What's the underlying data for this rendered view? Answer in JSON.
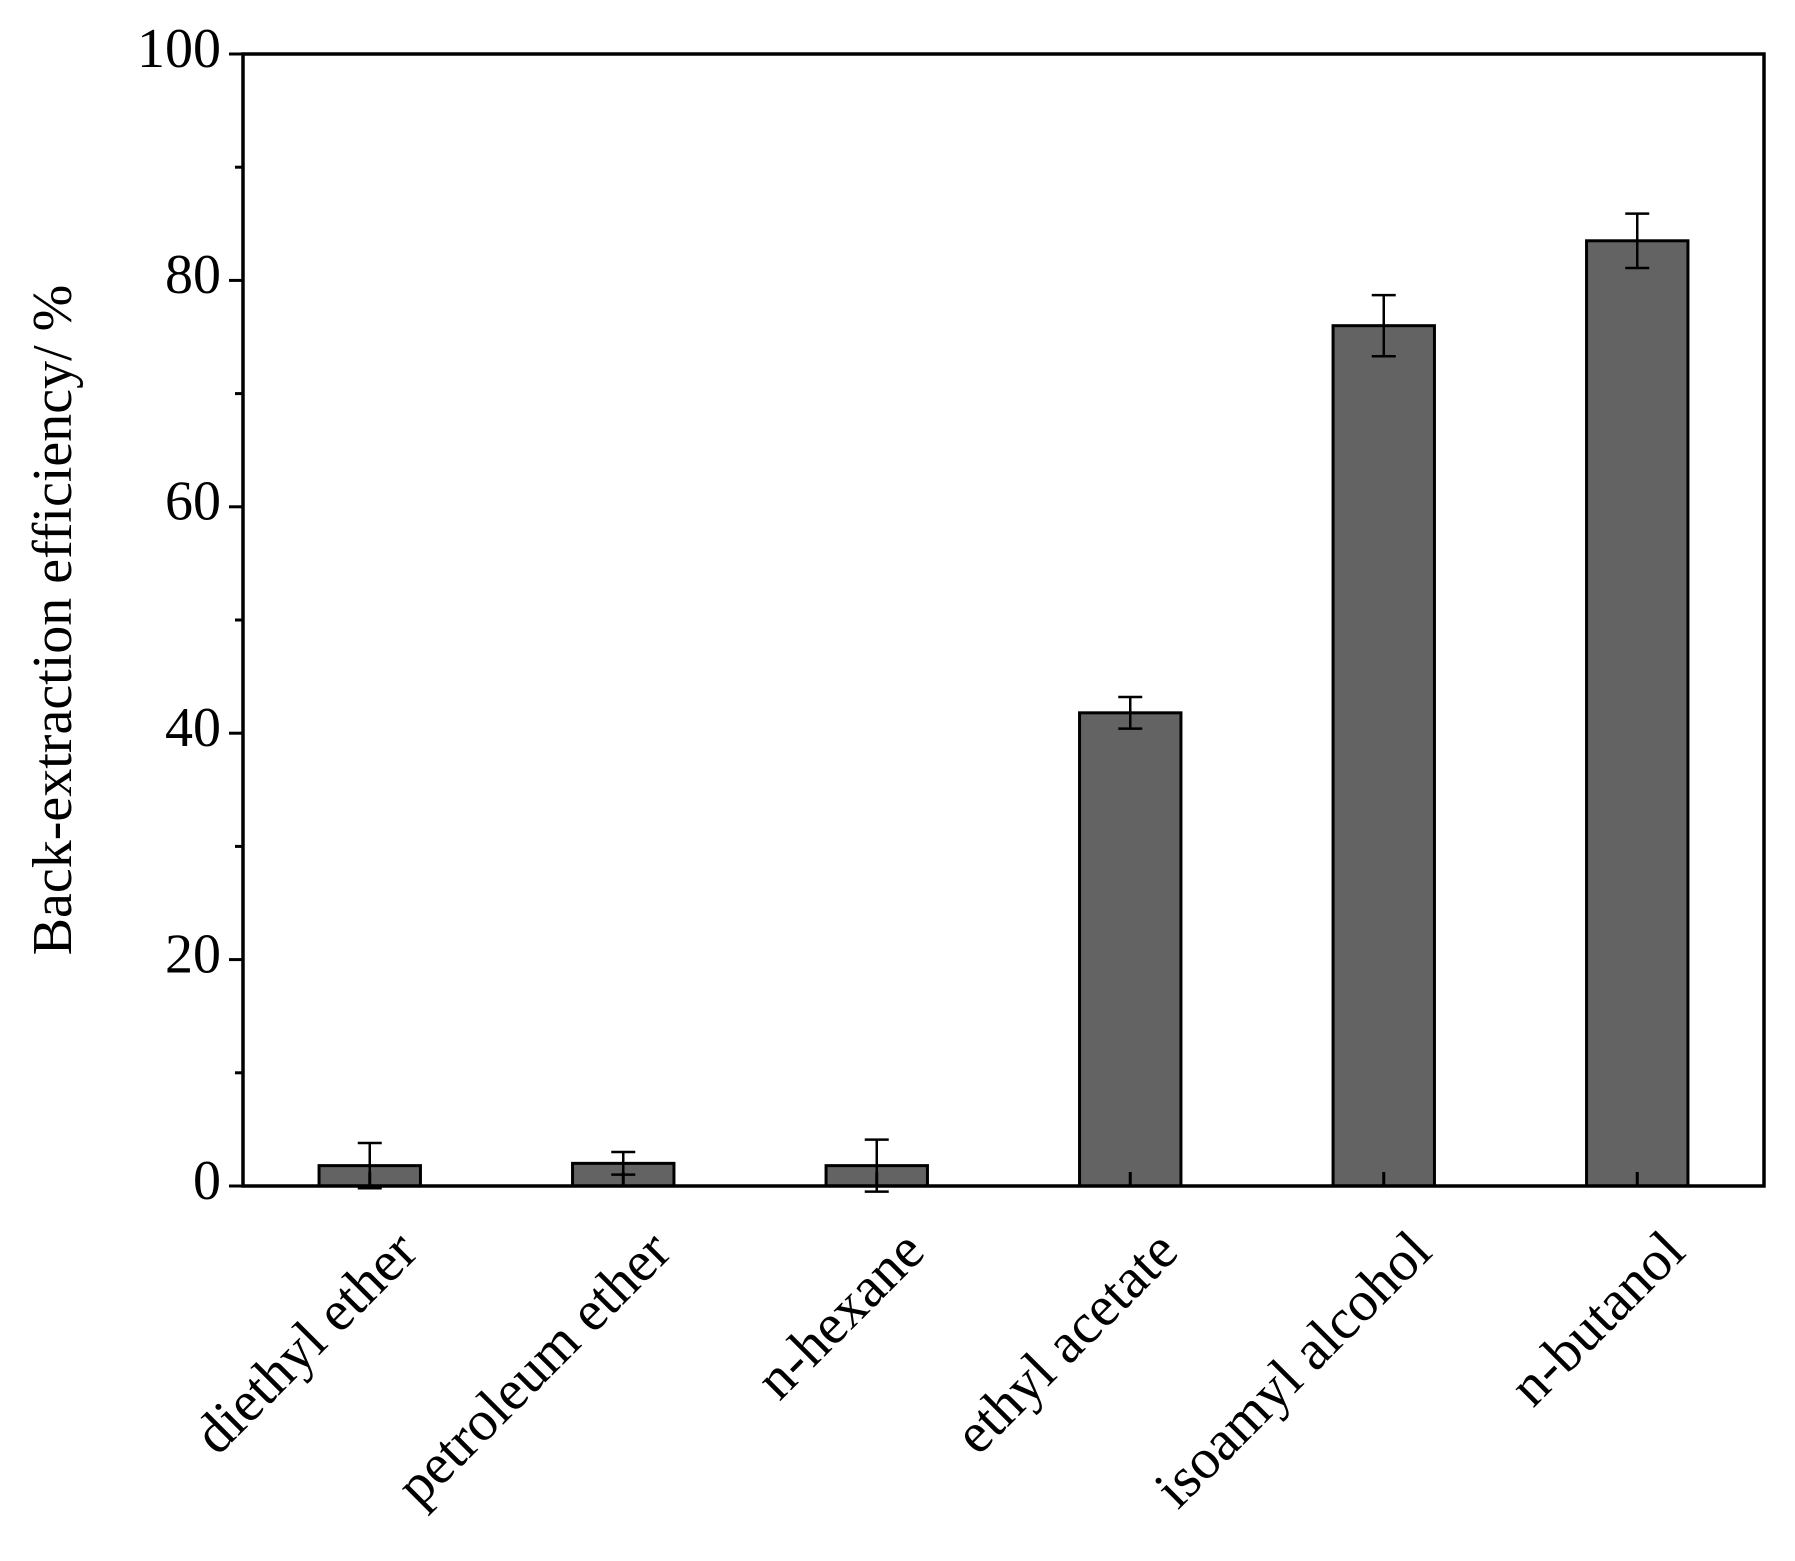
{
  "chart_data": {
    "type": "bar",
    "y_label": "Back-extraction efficiency/ %",
    "categories": [
      "diethyl ether",
      "petroleum ether",
      "n-hexane",
      "ethyl acetate",
      "isoamyl alcohol",
      "n-butanol"
    ],
    "values": [
      1.8,
      2.0,
      1.8,
      41.8,
      76.0,
      83.5
    ],
    "errors": [
      2.0,
      1.0,
      2.3,
      1.4,
      2.7,
      2.4
    ],
    "color": "#636363",
    "ylim": [
      0,
      100
    ],
    "yticks": [
      0,
      20,
      40,
      60,
      80,
      100
    ],
    "minor_yticks": [
      10,
      30,
      50,
      70,
      90
    ],
    "grid": false
  }
}
